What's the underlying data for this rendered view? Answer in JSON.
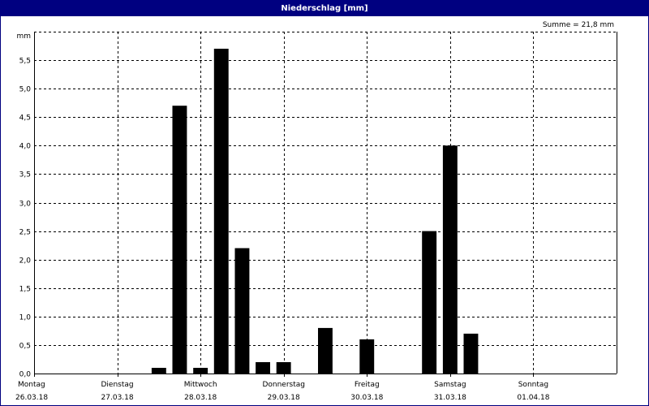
{
  "window": {
    "title": "Niederschlag [mm]"
  },
  "summary": "Summe = 21,8 mm",
  "chart_data": {
    "type": "bar",
    "title": "Niederschlag [mm]",
    "ylabel": "mm",
    "ylim": [
      0,
      6
    ],
    "yticks": [
      0,
      0.5,
      1,
      1.5,
      2,
      2.5,
      3,
      3.5,
      4,
      4.5,
      5,
      5.5
    ],
    "ytick_labels": [
      "0,0",
      "0,5",
      "1,0",
      "1,5",
      "2,0",
      "2,5",
      "3,0",
      "3,5",
      "4,0",
      "4,5",
      "5,0",
      "5,5"
    ],
    "grid": true,
    "x_unit": "6h",
    "days": [
      {
        "name": "Montag",
        "date": "26.03.18"
      },
      {
        "name": "Dienstag",
        "date": "27.03.18"
      },
      {
        "name": "Mittwoch",
        "date": "28.03.18"
      },
      {
        "name": "Donnerstag",
        "date": "29.03.18"
      },
      {
        "name": "Freitag",
        "date": "30.03.18"
      },
      {
        "name": "Samstag",
        "date": "31.03.18"
      },
      {
        "name": "Sonntag",
        "date": "01.04.18"
      }
    ],
    "values": [
      0,
      0,
      0,
      0,
      0,
      0.1,
      4.7,
      0.1,
      5.7,
      2.2,
      0.2,
      0.2,
      0,
      0.8,
      0,
      0.6,
      0,
      0,
      2.5,
      4.0,
      0.7
    ],
    "bar_color": "#000000",
    "grid_color": "#000000"
  }
}
